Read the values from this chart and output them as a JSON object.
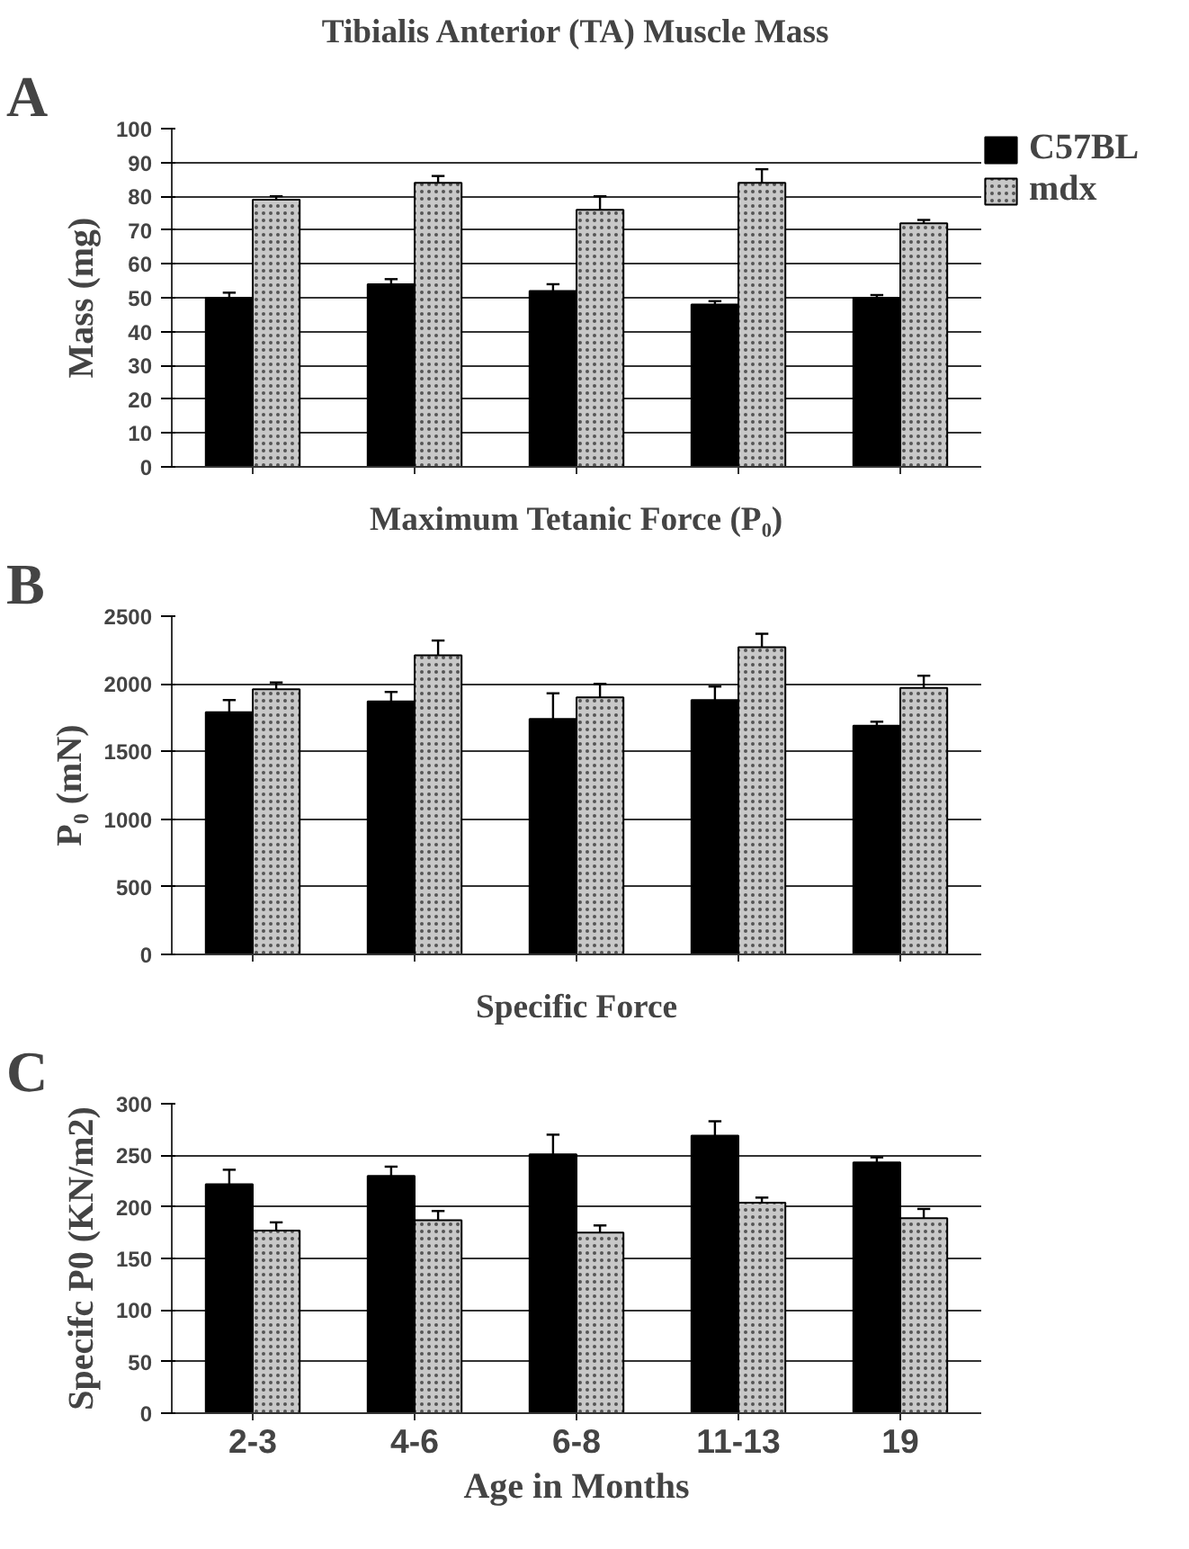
{
  "chart_data": [
    {
      "type": "bar",
      "title": "Tibialis Anterior (TA) Muscle Mass",
      "ylabel": "Mass (mg)",
      "annotations": [
        "A"
      ],
      "categories": [
        null,
        null,
        null,
        null,
        null
      ],
      "ylim": [
        0,
        100
      ],
      "yticks": [
        0,
        10,
        20,
        30,
        40,
        50,
        60,
        70,
        80,
        90,
        100
      ],
      "grid": "y",
      "legend": "top right",
      "tick_labels": "y",
      "series": [
        {
          "name": "C57BL",
          "color": "#000000",
          "values": [
            50,
            54,
            52,
            48,
            50
          ],
          "errors": [
            1.5,
            1.5,
            2,
            1,
            0.8
          ]
        },
        {
          "name": "mdx",
          "color": "#c8c8c8",
          "values": [
            79,
            84,
            76,
            84,
            72
          ],
          "errors": [
            1,
            2,
            4,
            4,
            1
          ]
        }
      ]
    },
    {
      "type": "bar",
      "title": "Maximum Tetanic Force (P₀)",
      "ylabel": "P₀ (mN)",
      "annotations": [
        "B"
      ],
      "categories": [
        null,
        null,
        null,
        null,
        null
      ],
      "ylim": [
        0,
        2500
      ],
      "yticks": [
        0,
        500,
        1000,
        1500,
        2000,
        2500
      ],
      "grid": "y",
      "tick_labels": "y",
      "series": [
        {
          "color": "#000000",
          "values": [
            1790,
            1870,
            1740,
            1880,
            1690
          ],
          "errors": [
            90,
            70,
            190,
            100,
            30
          ]
        },
        {
          "color": "#c8c8c8",
          "values": [
            1960,
            2210,
            1900,
            2270,
            1970
          ],
          "errors": [
            50,
            110,
            100,
            100,
            90
          ]
        }
      ]
    },
    {
      "type": "bar",
      "title": "Specific Force",
      "ylabel": "Specifc P0 (KN/m2)",
      "xlabel": "Age in Months",
      "annotations": [
        "C"
      ],
      "categories": [
        "2-3",
        "4-6",
        "6-8",
        "11-13",
        "19"
      ],
      "ylim": [
        0,
        300
      ],
      "yticks": [
        0,
        50,
        100,
        150,
        200,
        250,
        300
      ],
      "grid": "y",
      "series": [
        {
          "color": "#000000",
          "values": [
            222,
            230,
            251,
            269,
            243
          ],
          "errors": [
            14,
            9,
            19,
            14,
            5
          ]
        },
        {
          "color": "#c8c8c8",
          "values": [
            177,
            187,
            175,
            204,
            189
          ],
          "errors": [
            8,
            9,
            7,
            5,
            9
          ]
        }
      ]
    }
  ]
}
